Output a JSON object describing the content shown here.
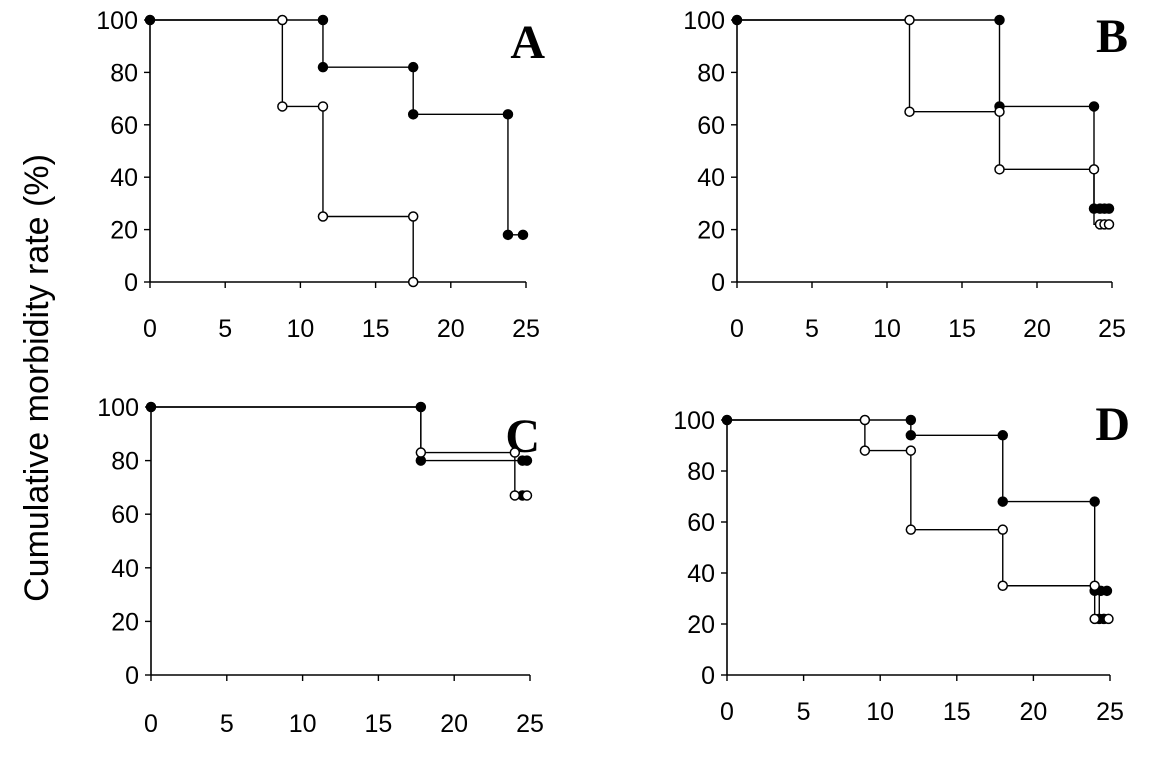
{
  "ylabel": "Cumulative morbidity rate (%)",
  "chart_data": [
    {
      "type": "line",
      "title": "A",
      "xticks": [
        "0",
        "5",
        "10",
        "15",
        "20",
        "25"
      ],
      "yticks": [
        "0",
        "20",
        "40",
        "60",
        "80",
        "100"
      ],
      "xlim": [
        0,
        25
      ],
      "ylim": [
        0,
        100
      ],
      "series": [
        {
          "marker": "filled",
          "steps": [
            [
              0,
              100
            ],
            [
              11.5,
              82
            ],
            [
              17.5,
              64
            ],
            [
              23.8,
              18
            ]
          ],
          "points": [
            [
              0,
              100
            ],
            [
              11.5,
              100
            ],
            [
              11.5,
              82
            ],
            [
              17.5,
              82
            ],
            [
              17.5,
              64
            ],
            [
              23.8,
              64
            ],
            [
              23.8,
              18
            ],
            [
              24.8,
              18
            ]
          ]
        },
        {
          "marker": "open",
          "steps": [
            [
              0,
              100
            ],
            [
              8.8,
              67
            ],
            [
              11.5,
              25
            ],
            [
              17.5,
              0
            ]
          ],
          "points": [
            [
              8.8,
              100
            ],
            [
              8.8,
              67
            ],
            [
              11.5,
              67
            ],
            [
              11.5,
              25
            ],
            [
              17.5,
              25
            ],
            [
              17.5,
              0
            ]
          ]
        }
      ]
    },
    {
      "type": "line",
      "title": "B",
      "xticks": [
        "0",
        "5",
        "10",
        "15",
        "20",
        "25"
      ],
      "yticks": [
        "0",
        "20",
        "40",
        "60",
        "80",
        "100"
      ],
      "xlim": [
        0,
        25
      ],
      "ylim": [
        0,
        100
      ],
      "series": [
        {
          "marker": "filled",
          "steps": [
            [
              0,
              100
            ],
            [
              17.5,
              67
            ],
            [
              23.8,
              28
            ]
          ],
          "points": [
            [
              0,
              100
            ],
            [
              17.5,
              100
            ],
            [
              17.5,
              67
            ],
            [
              23.8,
              67
            ],
            [
              23.8,
              28
            ],
            [
              24.2,
              28
            ],
            [
              24.5,
              28
            ],
            [
              24.8,
              28
            ]
          ]
        },
        {
          "marker": "open",
          "steps": [
            [
              0,
              100
            ],
            [
              11.5,
              65
            ],
            [
              17.5,
              43
            ],
            [
              23.8,
              22
            ]
          ],
          "points": [
            [
              11.5,
              100
            ],
            [
              11.5,
              65
            ],
            [
              17.5,
              65
            ],
            [
              17.5,
              43
            ],
            [
              23.8,
              43
            ],
            [
              24.2,
              22
            ],
            [
              24.5,
              22
            ],
            [
              24.8,
              22
            ]
          ]
        }
      ]
    },
    {
      "type": "line",
      "title": "C",
      "xticks": [
        "0",
        "5",
        "10",
        "15",
        "20",
        "25"
      ],
      "yticks": [
        "0",
        "20",
        "40",
        "60",
        "80",
        "100"
      ],
      "xlim": [
        0,
        25
      ],
      "ylim": [
        0,
        100
      ],
      "series": [
        {
          "marker": "filled",
          "steps": [
            [
              0,
              100
            ],
            [
              17.8,
              80
            ]
          ],
          "points": [
            [
              0,
              100
            ],
            [
              17.8,
              100
            ],
            [
              17.8,
              80
            ],
            [
              24.5,
              80
            ],
            [
              24.8,
              80
            ],
            [
              24.5,
              67
            ]
          ]
        },
        {
          "marker": "open",
          "steps": [
            [
              0,
              100
            ],
            [
              17.8,
              83
            ],
            [
              24,
              67
            ]
          ],
          "points": [
            [
              17.8,
              83
            ],
            [
              24,
              83
            ],
            [
              24,
              67
            ],
            [
              24.8,
              67
            ]
          ]
        }
      ]
    },
    {
      "type": "line",
      "title": "D",
      "xticks": [
        "0",
        "5",
        "10",
        "15",
        "20",
        "25"
      ],
      "yticks": [
        "0",
        "20",
        "40",
        "60",
        "80",
        "100"
      ],
      "xlim": [
        0,
        25
      ],
      "ylim": [
        0,
        100
      ],
      "series": [
        {
          "marker": "filled",
          "steps": [
            [
              0,
              100
            ],
            [
              12,
              94
            ],
            [
              18,
              68
            ],
            [
              24,
              33
            ],
            [
              24.3,
              22
            ]
          ],
          "points": [
            [
              0,
              100
            ],
            [
              12,
              100
            ],
            [
              12,
              94
            ],
            [
              18,
              94
            ],
            [
              18,
              68
            ],
            [
              24,
              68
            ],
            [
              24,
              33
            ],
            [
              24.4,
              33
            ],
            [
              24.8,
              33
            ],
            [
              24.3,
              22
            ],
            [
              24.6,
              22
            ]
          ]
        },
        {
          "marker": "open",
          "steps": [
            [
              0,
              100
            ],
            [
              9,
              88
            ],
            [
              12,
              57
            ],
            [
              18,
              35
            ],
            [
              24,
              22
            ]
          ],
          "points": [
            [
              9,
              100
            ],
            [
              9,
              88
            ],
            [
              12,
              88
            ],
            [
              12,
              57
            ],
            [
              18,
              57
            ],
            [
              18,
              35
            ],
            [
              24,
              35
            ],
            [
              24,
              22
            ],
            [
              24.9,
              22
            ]
          ]
        }
      ]
    }
  ]
}
